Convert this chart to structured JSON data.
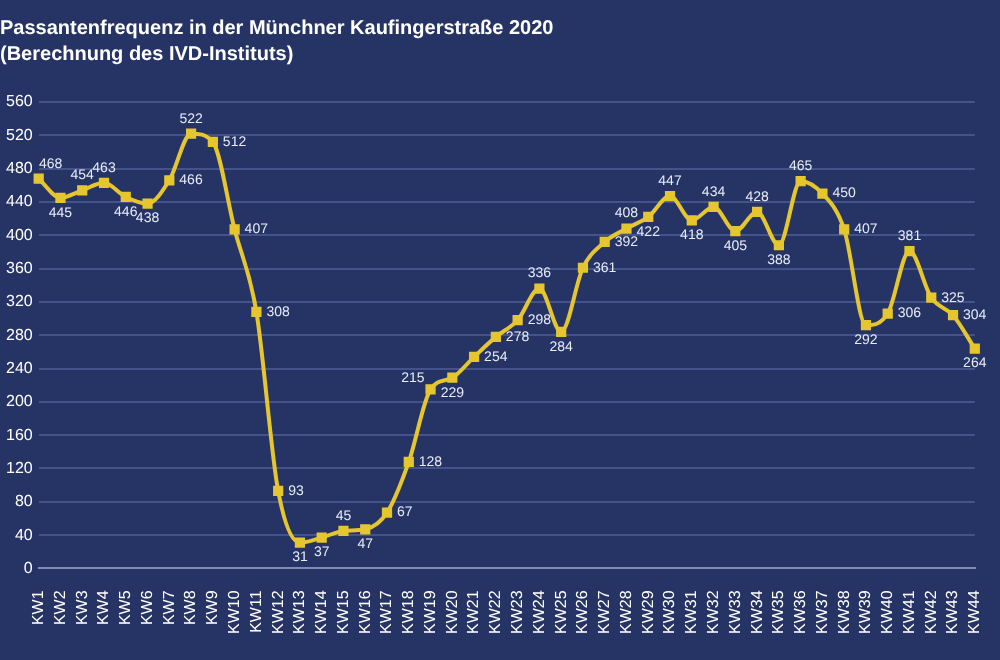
{
  "chart_data": {
    "type": "line",
    "title": "Passantenfrequenz in der Münchner Kaufingerstraße 2020",
    "subtitle": "(Berechnung des IVD-Instituts)",
    "categories": [
      "KW1",
      "KW2",
      "KW3",
      "KW4",
      "KW5",
      "KW6",
      "KW7",
      "KW8",
      "KW9",
      "KW10",
      "KW11",
      "KW12",
      "KW13",
      "KW14",
      "KW15",
      "KW16",
      "KW17",
      "KW18",
      "KW19",
      "KW20",
      "KW21",
      "KW22",
      "KW23",
      "KW24",
      "KW25",
      "KW26",
      "KW27",
      "KW28",
      "KW29",
      "KW30",
      "KW31",
      "KW32",
      "KW33",
      "KW34",
      "KW35",
      "KW36",
      "KW37",
      "KW38",
      "KW39",
      "KW40",
      "KW41",
      "KW42",
      "KW43",
      "KW44"
    ],
    "series": [
      {
        "color": "#e6c62e",
        "values": [
          468,
          445,
          454,
          463,
          446,
          438,
          466,
          522,
          512,
          407,
          308,
          93,
          31,
          37,
          45,
          47,
          67,
          128,
          215,
          229,
          254,
          278,
          298,
          336,
          284,
          361,
          392,
          408,
          422,
          447,
          418,
          434,
          405,
          428,
          388,
          465,
          450,
          407,
          292,
          306,
          381,
          325,
          304,
          264
        ]
      }
    ],
    "ylim": [
      0,
      560
    ],
    "yticks": [
      0,
      40,
      80,
      120,
      160,
      200,
      240,
      280,
      320,
      360,
      400,
      440,
      480,
      520,
      560
    ],
    "grid": "y",
    "legend": false,
    "marker": "square",
    "line_style": "solid",
    "data_labels": true
  }
}
